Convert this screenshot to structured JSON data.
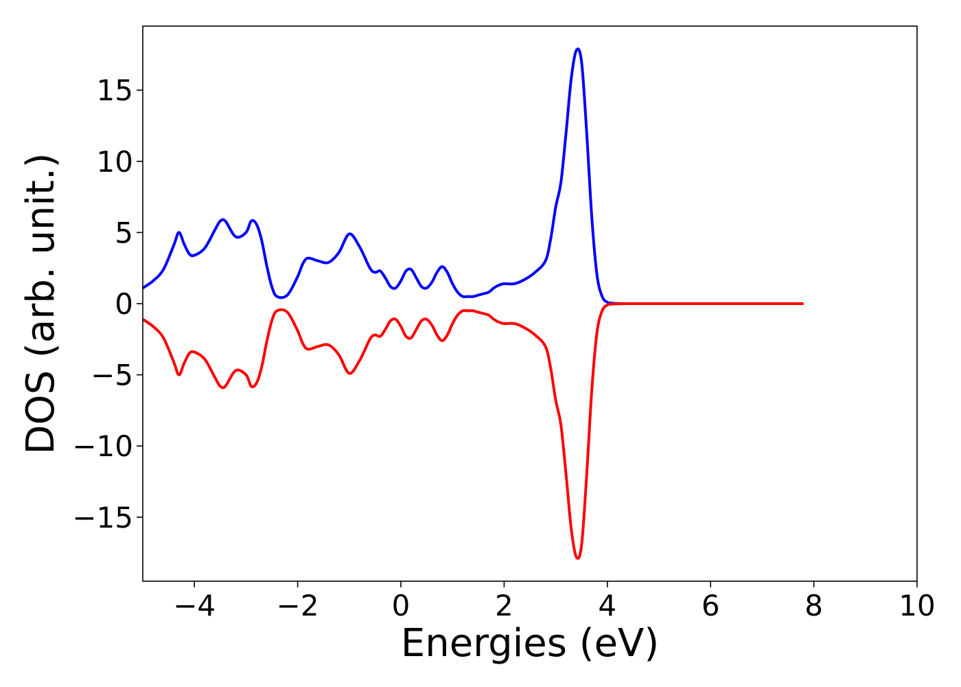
{
  "chart_data": {
    "type": "line",
    "title": "",
    "xlabel": "Energies (eV)",
    "ylabel": "DOS (arb. unit.)",
    "xlim": [
      -5,
      10
    ],
    "ylim": [
      -19.5,
      19.5
    ],
    "grid": false,
    "legend": "none",
    "xticks": [
      {
        "value": -4,
        "label": "−4"
      },
      {
        "value": -2,
        "label": "−2"
      },
      {
        "value": 0,
        "label": "0"
      },
      {
        "value": 2,
        "label": "2"
      },
      {
        "value": 4,
        "label": "4"
      },
      {
        "value": 6,
        "label": "6"
      },
      {
        "value": 8,
        "label": "8"
      },
      {
        "value": 10,
        "label": "10"
      }
    ],
    "yticks": [
      {
        "value": 15,
        "label": "15"
      },
      {
        "value": 10,
        "label": "10"
      },
      {
        "value": 5,
        "label": "5"
      },
      {
        "value": 0,
        "label": "0"
      },
      {
        "value": -5,
        "label": "−5"
      },
      {
        "value": -10,
        "label": "−10"
      },
      {
        "value": -15,
        "label": "−15"
      }
    ],
    "series": [
      {
        "color": "#0000ff",
        "x": [
          -5.0,
          -4.8,
          -4.6,
          -4.4,
          -4.3,
          -4.2,
          -4.1,
          -4.0,
          -3.8,
          -3.6,
          -3.5,
          -3.4,
          -3.2,
          -3.0,
          -2.9,
          -2.8,
          -2.7,
          -2.6,
          -2.5,
          -2.4,
          -2.2,
          -2.0,
          -1.9,
          -1.8,
          -1.6,
          -1.4,
          -1.2,
          -1.0,
          -0.8,
          -0.6,
          -0.5,
          -0.4,
          -0.3,
          -0.2,
          -0.1,
          0.0,
          0.1,
          0.2,
          0.3,
          0.4,
          0.5,
          0.6,
          0.7,
          0.8,
          0.9,
          1.0,
          1.1,
          1.2,
          1.3,
          1.4,
          1.5,
          1.6,
          1.7,
          1.8,
          1.9,
          2.0,
          2.2,
          2.4,
          2.6,
          2.8,
          2.9,
          3.0,
          3.1,
          3.2,
          3.3,
          3.4,
          3.5,
          3.6,
          3.7,
          3.8,
          3.9,
          4.0,
          4.1,
          4.2,
          4.3,
          4.4,
          4.5,
          4.6,
          4.7,
          4.8,
          4.9,
          5.0,
          5.1,
          5.2,
          5.3,
          5.5,
          6.0,
          7.0,
          7.8
        ],
        "y": [
          1.1,
          1.6,
          2.4,
          4.1,
          5.0,
          4.2,
          3.5,
          3.4,
          3.9,
          5.2,
          5.8,
          5.8,
          4.7,
          5.0,
          5.8,
          5.6,
          4.5,
          2.7,
          1.2,
          0.5,
          0.6,
          1.9,
          2.8,
          3.2,
          3.0,
          2.9,
          3.6,
          4.9,
          4.0,
          2.5,
          2.2,
          2.3,
          1.8,
          1.2,
          1.1,
          1.6,
          2.3,
          2.4,
          1.8,
          1.2,
          1.1,
          1.5,
          2.2,
          2.6,
          2.2,
          1.4,
          0.8,
          0.5,
          0.5,
          0.5,
          0.6,
          0.7,
          0.8,
          1.1,
          1.3,
          1.4,
          1.4,
          1.7,
          2.2,
          3.0,
          4.5,
          6.8,
          8.5,
          12.0,
          15.8,
          17.8,
          17.0,
          12.0,
          6.0,
          2.0,
          0.5,
          0.1,
          0.03,
          0.01,
          0.0,
          0.0,
          0.0,
          0.0,
          0.0,
          0.0,
          0.0,
          0.0,
          0.0,
          0.0,
          0.0,
          0.0,
          0.0,
          0.0,
          0.0
        ]
      },
      {
        "color": "#ff0000",
        "x": [
          -5.0,
          -4.8,
          -4.6,
          -4.4,
          -4.3,
          -4.2,
          -4.1,
          -4.0,
          -3.8,
          -3.6,
          -3.5,
          -3.4,
          -3.2,
          -3.0,
          -2.9,
          -2.8,
          -2.7,
          -2.6,
          -2.5,
          -2.4,
          -2.2,
          -2.0,
          -1.9,
          -1.8,
          -1.6,
          -1.4,
          -1.2,
          -1.0,
          -0.8,
          -0.6,
          -0.5,
          -0.4,
          -0.3,
          -0.2,
          -0.1,
          0.0,
          0.1,
          0.2,
          0.3,
          0.4,
          0.5,
          0.6,
          0.7,
          0.8,
          0.9,
          1.0,
          1.1,
          1.2,
          1.3,
          1.4,
          1.5,
          1.6,
          1.7,
          1.8,
          1.9,
          2.0,
          2.2,
          2.4,
          2.6,
          2.8,
          2.9,
          3.0,
          3.1,
          3.2,
          3.3,
          3.4,
          3.5,
          3.6,
          3.7,
          3.8,
          3.9,
          4.0,
          4.1,
          4.2,
          4.3,
          4.4,
          4.5,
          4.6,
          4.7,
          4.8,
          4.9,
          5.0,
          5.1,
          5.2,
          5.3,
          5.5,
          6.0,
          7.0,
          7.8
        ],
        "y": [
          -1.1,
          -1.6,
          -2.4,
          -4.1,
          -5.0,
          -4.2,
          -3.5,
          -3.4,
          -3.9,
          -5.2,
          -5.8,
          -5.8,
          -4.7,
          -5.0,
          -5.8,
          -5.6,
          -4.5,
          -2.7,
          -1.2,
          -0.5,
          -0.6,
          -1.9,
          -2.8,
          -3.2,
          -3.0,
          -2.9,
          -3.6,
          -4.9,
          -4.0,
          -2.5,
          -2.2,
          -2.3,
          -1.8,
          -1.2,
          -1.1,
          -1.6,
          -2.3,
          -2.4,
          -1.8,
          -1.2,
          -1.1,
          -1.5,
          -2.2,
          -2.6,
          -2.2,
          -1.4,
          -0.8,
          -0.5,
          -0.5,
          -0.5,
          -0.6,
          -0.7,
          -0.8,
          -1.1,
          -1.3,
          -1.4,
          -1.4,
          -1.7,
          -2.2,
          -3.0,
          -4.5,
          -6.8,
          -8.5,
          -12.0,
          -15.8,
          -17.8,
          -17.0,
          -12.0,
          -6.0,
          -2.0,
          -0.5,
          -0.1,
          -0.03,
          -0.01,
          0.0,
          0.0,
          0.0,
          0.0,
          0.0,
          0.0,
          0.0,
          0.0,
          0.0,
          0.0,
          0.0,
          0.0,
          0.0,
          0.0,
          0.0
        ]
      }
    ]
  }
}
